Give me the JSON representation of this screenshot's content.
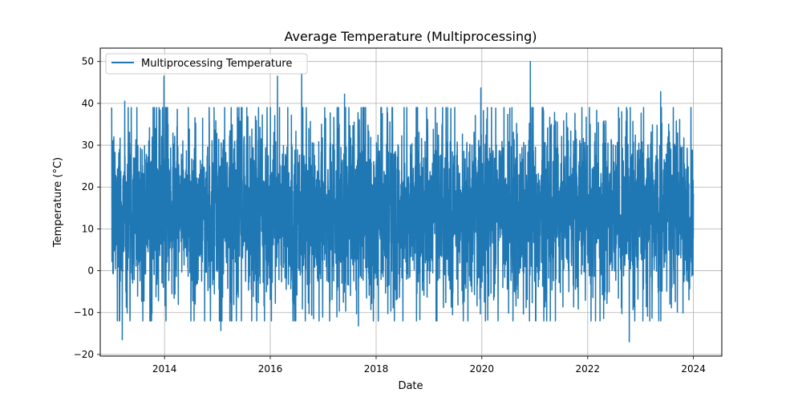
{
  "chart_data": {
    "type": "line",
    "title": "Average Temperature (Multiprocessing)",
    "xlabel": "Date",
    "ylabel": "Temperature (°C)",
    "xlim": [
      "2012-10-14",
      "2024-07-15"
    ],
    "ylim": [
      -20.4,
      53.2
    ],
    "x_ticks": [
      "2014",
      "2016",
      "2018",
      "2020",
      "2022",
      "2024"
    ],
    "y_ticks": [
      "−20",
      "−10",
      "0",
      "10",
      "20",
      "30",
      "40",
      "50"
    ],
    "grid": true,
    "legend_position": "upper left",
    "series": [
      {
        "name": "Multiprocessing Temperature",
        "color": "#1f77b4",
        "date_range": [
          "2013-01-01",
          "2024-01-01"
        ],
        "typical_range": [
          3,
          25
        ],
        "extreme_values": [
          {
            "x": "2013-03-15",
            "y": -16.5
          },
          {
            "x": "2013-04-01",
            "y": 40.5
          },
          {
            "x": "2013-12-28",
            "y": 46.5
          },
          {
            "x": "2015-01-25",
            "y": -14.3
          },
          {
            "x": "2016-02-20",
            "y": 46.5
          },
          {
            "x": "2016-08-05",
            "y": 47.2
          },
          {
            "x": "2017-05-28",
            "y": 42.2
          },
          {
            "x": "2017-09-01",
            "y": -13.2
          },
          {
            "x": "2019-12-25",
            "y": 43.7
          },
          {
            "x": "2020-12-01",
            "y": 50.0
          },
          {
            "x": "2022-10-15",
            "y": -17.0
          },
          {
            "x": "2023-05-20",
            "y": 42.8
          }
        ]
      }
    ]
  }
}
